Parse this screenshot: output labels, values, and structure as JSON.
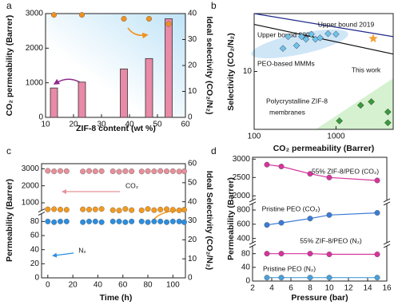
{
  "chart_data": [
    {
      "type": "bar",
      "label": "a",
      "xlabel": "ZIF-8 content (wt %)",
      "ylabel": "CO₂ permeability (Barrer)",
      "y2label": "Ideal selectivity (CO₂/N₂)",
      "x": [
        13,
        23,
        38,
        47,
        54
      ],
      "xlim": [
        10,
        60
      ],
      "xticks": [
        10,
        20,
        30,
        40,
        50,
        60
      ],
      "ylim": [
        0,
        3000
      ],
      "yticks": [
        0,
        1000,
        2000,
        3000
      ],
      "y2lim": [
        0,
        40
      ],
      "y2ticks": [
        0,
        10,
        20,
        30,
        40
      ],
      "series": [
        {
          "type": "bar",
          "color": "#e88aa8",
          "values": [
            850,
            1020,
            1400,
            1700,
            2850
          ]
        },
        {
          "type": "scatter",
          "marker": "circle",
          "axis": "y2",
          "color": "#f0901e",
          "values": [
            39.5,
            39.5,
            38,
            38,
            36
          ]
        }
      ]
    },
    {
      "type": "scatter",
      "label": "b",
      "xlabel": "CO₂ permeability (Barrer)",
      "ylabel": "Selectivity (CO₂/N₂)",
      "xlog": true,
      "ylog": true,
      "xlim": [
        100,
        5000
      ],
      "xticks": [
        100,
        1000
      ],
      "ylim": [
        1,
        100
      ],
      "yticks": [
        10
      ],
      "series": [
        {
          "name": "Upper bound 2019",
          "type": "line",
          "color": "#1f2a8a",
          "x": [
            100,
            5000
          ],
          "values": [
            100,
            40
          ]
        },
        {
          "name": "Upper bound 2008",
          "type": "line",
          "color": "#111111",
          "x": [
            100,
            5000
          ],
          "values": [
            65,
            20
          ]
        },
        {
          "name": "PEO-based MMMs",
          "marker": "diamond",
          "color": "#6fc3ec",
          "x": [
            225,
            260,
            330,
            380,
            430,
            500,
            560,
            640,
            800,
            1000
          ],
          "values": [
            25,
            40,
            28,
            40,
            36,
            44,
            36,
            38,
            45,
            44
          ]
        },
        {
          "name": "This work",
          "marker": "star",
          "color": "#f4a13a",
          "x": [
            2850
          ],
          "values": [
            37
          ]
        },
        {
          "marker": "diamond",
          "color": "#3a9a3a",
          "x": [
            1100,
            2000,
            2700,
            4300,
            4300
          ],
          "values": [
            1.4,
            2.6,
            3.0,
            2.0,
            1.3
          ]
        }
      ],
      "annotations": [
        "Polycrystalline ZIF-8",
        "membranes"
      ]
    },
    {
      "type": "scatter",
      "label": "c",
      "xlabel": "Time (h)",
      "ylabel": "Permeability (Barrer)",
      "y2label": "Ideal Selectivity (CO₂/N₂)",
      "x": [
        0,
        5,
        10,
        15,
        28,
        33,
        38,
        43,
        52,
        57,
        62,
        67,
        75,
        80,
        85,
        90,
        95,
        100,
        105,
        109
      ],
      "xlim": [
        -5,
        110
      ],
      "xticks": [
        0,
        20,
        40,
        60,
        80,
        100
      ],
      "segments": [
        {
          "ylim": [
            0,
            90
          ],
          "yticks": [
            0,
            20,
            40,
            60,
            80
          ]
        },
        {
          "ylim": [
            600,
            3300
          ],
          "yticks": [
            1000,
            2000,
            3000
          ]
        }
      ],
      "y2lim": [
        0,
        60
      ],
      "y2ticks": [
        0,
        10,
        20,
        30,
        40,
        50,
        60
      ],
      "series": [
        {
          "name": "CO₂",
          "marker": "circle",
          "color": "#e8909a",
          "values": [
            2880,
            2850,
            2870,
            2860,
            2840,
            2870,
            2850,
            2860,
            2850,
            2830,
            2860,
            2850,
            2840,
            2860,
            2850,
            2870,
            2850,
            2860,
            2840,
            2850
          ]
        },
        {
          "name": "N₂",
          "marker": "circle",
          "color": "#2b8ee0",
          "values": [
            80,
            79,
            80,
            80,
            79,
            80,
            80,
            79,
            80,
            80,
            79,
            80,
            80,
            79,
            80,
            80,
            79,
            80,
            80,
            79
          ]
        },
        {
          "marker": "circle",
          "axis": "y2",
          "color": "#f39a1e",
          "values": [
            36,
            36.1,
            35.9,
            35.8,
            36,
            35.9,
            36,
            36.2,
            35.6,
            35.4,
            36.2,
            35.6,
            35.5,
            36.2,
            35.6,
            35.9,
            36.1,
            35.8,
            35.5,
            35.8
          ]
        }
      ]
    },
    {
      "type": "line",
      "label": "d",
      "xlabel": "Pressure (bar)",
      "ylabel": "Permeability (Barrer)",
      "x": [
        3.5,
        5,
        8,
        10,
        15
      ],
      "xlim": [
        2,
        16
      ],
      "xticks": [
        2,
        4,
        6,
        8,
        10,
        12,
        14,
        16
      ],
      "segments": [
        {
          "ylim": [
            0,
            100
          ],
          "yticks": [
            0,
            40,
            80
          ]
        },
        {
          "ylim": [
            350,
            880
          ],
          "yticks": [
            400,
            600,
            800
          ]
        },
        {
          "ylim": [
            1900,
            3050
          ],
          "yticks": [
            2000,
            2500,
            3000
          ]
        }
      ],
      "series": [
        {
          "name": "55% ZIF-8/PEO (CO₂)",
          "marker": "circle",
          "color": "#d6339b",
          "values": [
            2850,
            2800,
            2600,
            2500,
            2420
          ]
        },
        {
          "name": "Pristine PEO (CO₂)",
          "marker": "circle",
          "color": "#3a7bd5",
          "values": [
            590,
            620,
            680,
            730,
            760
          ]
        },
        {
          "name": "55% ZIF-8/PEO (N₂)",
          "marker": "circle",
          "color": "#d6339b",
          "values": [
            80,
            80,
            80,
            78,
            78
          ]
        },
        {
          "name": "Pristine PEO (N₂)",
          "marker": "circle",
          "color": "#4a9fd8",
          "values": [
            10,
            10,
            10,
            10,
            10
          ]
        }
      ]
    }
  ]
}
